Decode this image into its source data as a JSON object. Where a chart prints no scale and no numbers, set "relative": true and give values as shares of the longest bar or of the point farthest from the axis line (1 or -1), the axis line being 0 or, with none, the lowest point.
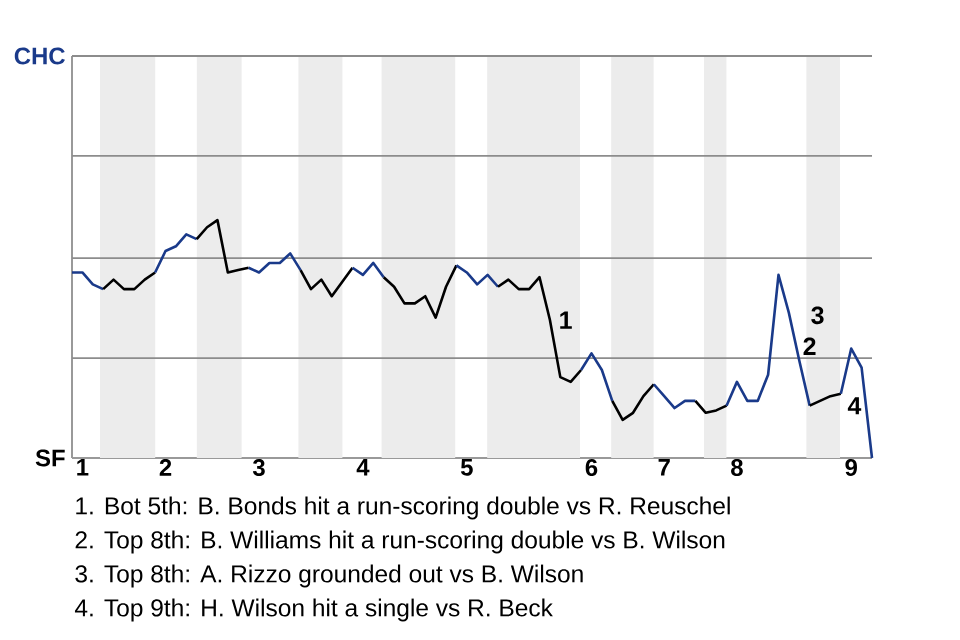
{
  "chart_data": {
    "type": "line",
    "relative": true,
    "categories": [
      null,
      "1",
      null,
      null,
      null,
      null,
      null,
      null,
      null,
      "2",
      null,
      null,
      null,
      null,
      null,
      null,
      null,
      null,
      "3",
      null,
      null,
      null,
      null,
      null,
      null,
      null,
      null,
      null,
      "4",
      null,
      null,
      null,
      null,
      null,
      null,
      null,
      null,
      null,
      "5",
      null,
      null,
      null,
      null,
      null,
      null,
      null,
      null,
      null,
      null,
      null,
      "6",
      null,
      null,
      null,
      null,
      null,
      null,
      "7",
      null,
      null,
      null,
      null,
      null,
      null,
      "8",
      null,
      null,
      null,
      null,
      null,
      null,
      null,
      null,
      null,
      null,
      "9",
      null,
      null
    ],
    "marker": "none",
    "line_style": "solid",
    "series": [
      {
        "color": "#1a3a8a",
        "values": [
          0.78,
          0.78,
          0.73,
          0.71,
          null,
          null,
          null,
          null,
          null,
          null,
          null,
          null,
          null,
          null,
          null,
          null,
          null,
          null,
          null,
          null,
          null,
          null,
          null,
          null,
          null,
          null,
          null,
          null,
          null,
          null,
          null,
          null,
          null,
          null,
          null,
          null,
          null,
          null,
          null,
          null,
          null,
          null,
          null,
          null,
          null,
          null,
          null,
          null,
          null,
          null,
          null,
          null,
          null,
          null,
          null,
          null,
          null,
          null,
          null,
          null,
          null,
          null,
          null,
          null,
          null,
          null,
          null,
          null,
          null,
          null,
          null,
          null,
          null,
          null,
          null,
          null,
          null,
          null
        ]
      },
      {
        "color": "#000000",
        "values": [
          null,
          null,
          null,
          0.71,
          0.75,
          0.71,
          0.71,
          0.75,
          0.78,
          null,
          null,
          null,
          null,
          null,
          null,
          null,
          null,
          null,
          null,
          null,
          null,
          null,
          null,
          null,
          null,
          null,
          null,
          null,
          null,
          null,
          null,
          null,
          null,
          null,
          null,
          null,
          null,
          null,
          null,
          null,
          null,
          null,
          null,
          null,
          null,
          null,
          null,
          null,
          null,
          null,
          null,
          null,
          null,
          null,
          null,
          null,
          null,
          null,
          null,
          null,
          null,
          null,
          null,
          null,
          null,
          null,
          null,
          null,
          null,
          null,
          null,
          null,
          null,
          null,
          null,
          null,
          null,
          null
        ]
      },
      {
        "color": "#1a3a8a",
        "values": [
          null,
          null,
          null,
          null,
          null,
          null,
          null,
          null,
          0.78,
          0.87,
          0.89,
          0.94,
          0.92,
          null,
          null,
          null,
          null,
          null,
          null,
          null,
          null,
          null,
          null,
          null,
          null,
          null,
          null,
          null,
          null,
          null,
          null,
          null,
          null,
          null,
          null,
          null,
          null,
          null,
          null,
          null,
          null,
          null,
          null,
          null,
          null,
          null,
          null,
          null,
          null,
          null,
          null,
          null,
          null,
          null,
          null,
          null,
          null,
          null,
          null,
          null,
          null,
          null,
          null,
          null,
          null,
          null,
          null,
          null,
          null,
          null,
          null,
          null,
          null,
          null,
          null,
          null,
          null,
          null
        ]
      },
      {
        "color": "#000000",
        "values": [
          null,
          null,
          null,
          null,
          null,
          null,
          null,
          null,
          null,
          null,
          null,
          null,
          0.92,
          0.97,
          1,
          0.78,
          0.79,
          0.8,
          null,
          null,
          null,
          null,
          null,
          null,
          null,
          null,
          null,
          null,
          null,
          null,
          null,
          null,
          null,
          null,
          null,
          null,
          null,
          null,
          null,
          null,
          null,
          null,
          null,
          null,
          null,
          null,
          null,
          null,
          null,
          null,
          null,
          null,
          null,
          null,
          null,
          null,
          null,
          null,
          null,
          null,
          null,
          null,
          null,
          null,
          null,
          null,
          null,
          null,
          null,
          null,
          null,
          null,
          null,
          null,
          null,
          null,
          null,
          null
        ]
      },
      {
        "color": "#1a3a8a",
        "values": [
          null,
          null,
          null,
          null,
          null,
          null,
          null,
          null,
          null,
          null,
          null,
          null,
          null,
          null,
          null,
          null,
          null,
          0.8,
          0.78,
          0.82,
          0.82,
          0.86,
          0.79,
          null,
          null,
          null,
          null,
          null,
          null,
          null,
          null,
          null,
          null,
          null,
          null,
          null,
          null,
          null,
          null,
          null,
          null,
          null,
          null,
          null,
          null,
          null,
          null,
          null,
          null,
          null,
          null,
          null,
          null,
          null,
          null,
          null,
          null,
          null,
          null,
          null,
          null,
          null,
          null,
          null,
          null,
          null,
          null,
          null,
          null,
          null,
          null,
          null,
          null,
          null,
          null,
          null,
          null,
          null
        ]
      },
      {
        "color": "#000000",
        "values": [
          null,
          null,
          null,
          null,
          null,
          null,
          null,
          null,
          null,
          null,
          null,
          null,
          null,
          null,
          null,
          null,
          null,
          null,
          null,
          null,
          null,
          null,
          0.79,
          0.71,
          0.75,
          0.68,
          0.74,
          0.8,
          null,
          null,
          null,
          null,
          null,
          null,
          null,
          null,
          null,
          null,
          null,
          null,
          null,
          null,
          null,
          null,
          null,
          null,
          null,
          null,
          null,
          null,
          null,
          null,
          null,
          null,
          null,
          null,
          null,
          null,
          null,
          null,
          null,
          null,
          null,
          null,
          null,
          null,
          null,
          null,
          null,
          null,
          null,
          null,
          null,
          null,
          null,
          null,
          null,
          null
        ]
      },
      {
        "color": "#1a3a8a",
        "values": [
          null,
          null,
          null,
          null,
          null,
          null,
          null,
          null,
          null,
          null,
          null,
          null,
          null,
          null,
          null,
          null,
          null,
          null,
          null,
          null,
          null,
          null,
          null,
          null,
          null,
          null,
          null,
          0.8,
          0.77,
          0.82,
          0.76,
          null,
          null,
          null,
          null,
          null,
          null,
          null,
          null,
          null,
          null,
          null,
          null,
          null,
          null,
          null,
          null,
          null,
          null,
          null,
          null,
          null,
          null,
          null,
          null,
          null,
          null,
          null,
          null,
          null,
          null,
          null,
          null,
          null,
          null,
          null,
          null,
          null,
          null,
          null,
          null,
          null,
          null,
          null,
          null,
          null,
          null,
          null
        ]
      },
      {
        "color": "#000000",
        "values": [
          null,
          null,
          null,
          null,
          null,
          null,
          null,
          null,
          null,
          null,
          null,
          null,
          null,
          null,
          null,
          null,
          null,
          null,
          null,
          null,
          null,
          null,
          null,
          null,
          null,
          null,
          null,
          null,
          null,
          null,
          0.76,
          0.72,
          0.65,
          0.65,
          0.68,
          0.59,
          0.72,
          0.81,
          null,
          null,
          null,
          null,
          null,
          null,
          null,
          null,
          null,
          null,
          null,
          null,
          null,
          null,
          null,
          null,
          null,
          null,
          null,
          null,
          null,
          null,
          null,
          null,
          null,
          null,
          null,
          null,
          null,
          null,
          null,
          null,
          null,
          null,
          null,
          null,
          null,
          null,
          null,
          null
        ]
      },
      {
        "color": "#1a3a8a",
        "values": [
          null,
          null,
          null,
          null,
          null,
          null,
          null,
          null,
          null,
          null,
          null,
          null,
          null,
          null,
          null,
          null,
          null,
          null,
          null,
          null,
          null,
          null,
          null,
          null,
          null,
          null,
          null,
          null,
          null,
          null,
          null,
          null,
          null,
          null,
          null,
          null,
          null,
          0.81,
          0.78,
          0.73,
          0.77,
          0.72,
          null,
          null,
          null,
          null,
          null,
          null,
          null,
          null,
          null,
          null,
          null,
          null,
          null,
          null,
          null,
          null,
          null,
          null,
          null,
          null,
          null,
          null,
          null,
          null,
          null,
          null,
          null,
          null,
          null,
          null,
          null,
          null,
          null,
          null,
          null,
          null
        ]
      },
      {
        "color": "#000000",
        "values": [
          null,
          null,
          null,
          null,
          null,
          null,
          null,
          null,
          null,
          null,
          null,
          null,
          null,
          null,
          null,
          null,
          null,
          null,
          null,
          null,
          null,
          null,
          null,
          null,
          null,
          null,
          null,
          null,
          null,
          null,
          null,
          null,
          null,
          null,
          null,
          null,
          null,
          null,
          null,
          null,
          null,
          0.72,
          0.75,
          0.71,
          0.71,
          0.76,
          0.58,
          0.34,
          0.32,
          0.37,
          null,
          null,
          null,
          null,
          null,
          null,
          null,
          null,
          null,
          null,
          null,
          null,
          null,
          null,
          null,
          null,
          null,
          null,
          null,
          null,
          null,
          null,
          null,
          null,
          null,
          null,
          null,
          null
        ]
      },
      {
        "color": "#1a3a8a",
        "values": [
          null,
          null,
          null,
          null,
          null,
          null,
          null,
          null,
          null,
          null,
          null,
          null,
          null,
          null,
          null,
          null,
          null,
          null,
          null,
          null,
          null,
          null,
          null,
          null,
          null,
          null,
          null,
          null,
          null,
          null,
          null,
          null,
          null,
          null,
          null,
          null,
          null,
          null,
          null,
          null,
          null,
          null,
          null,
          null,
          null,
          null,
          null,
          null,
          null,
          0.37,
          0.44,
          0.37,
          0.24,
          null,
          null,
          null,
          null,
          null,
          null,
          null,
          null,
          null,
          null,
          null,
          null,
          null,
          null,
          null,
          null,
          null,
          null,
          null,
          null,
          null,
          null,
          null,
          null,
          null
        ]
      },
      {
        "color": "#000000",
        "values": [
          null,
          null,
          null,
          null,
          null,
          null,
          null,
          null,
          null,
          null,
          null,
          null,
          null,
          null,
          null,
          null,
          null,
          null,
          null,
          null,
          null,
          null,
          null,
          null,
          null,
          null,
          null,
          null,
          null,
          null,
          null,
          null,
          null,
          null,
          null,
          null,
          null,
          null,
          null,
          null,
          null,
          null,
          null,
          null,
          null,
          null,
          null,
          null,
          null,
          null,
          null,
          null,
          0.24,
          0.16,
          0.19,
          0.26,
          0.31,
          null,
          null,
          null,
          null,
          null,
          null,
          null,
          null,
          null,
          null,
          null,
          null,
          null,
          null,
          null,
          null,
          null,
          null,
          null,
          null,
          null
        ]
      },
      {
        "color": "#1a3a8a",
        "values": [
          null,
          null,
          null,
          null,
          null,
          null,
          null,
          null,
          null,
          null,
          null,
          null,
          null,
          null,
          null,
          null,
          null,
          null,
          null,
          null,
          null,
          null,
          null,
          null,
          null,
          null,
          null,
          null,
          null,
          null,
          null,
          null,
          null,
          null,
          null,
          null,
          null,
          null,
          null,
          null,
          null,
          null,
          null,
          null,
          null,
          null,
          null,
          null,
          null,
          null,
          null,
          null,
          null,
          null,
          null,
          null,
          0.31,
          0.26,
          0.21,
          0.24,
          0.24,
          null,
          null,
          null,
          null,
          null,
          null,
          null,
          null,
          null,
          null,
          null,
          null,
          null,
          null,
          null,
          null,
          null
        ]
      },
      {
        "color": "#000000",
        "values": [
          null,
          null,
          null,
          null,
          null,
          null,
          null,
          null,
          null,
          null,
          null,
          null,
          null,
          null,
          null,
          null,
          null,
          null,
          null,
          null,
          null,
          null,
          null,
          null,
          null,
          null,
          null,
          null,
          null,
          null,
          null,
          null,
          null,
          null,
          null,
          null,
          null,
          null,
          null,
          null,
          null,
          null,
          null,
          null,
          null,
          null,
          null,
          null,
          null,
          null,
          null,
          null,
          null,
          null,
          null,
          null,
          null,
          null,
          null,
          null,
          0.24,
          0.19,
          0.2,
          0.22,
          null,
          null,
          null,
          null,
          null,
          null,
          null,
          null,
          null,
          null,
          null,
          null,
          null,
          null
        ]
      },
      {
        "color": "#1a3a8a",
        "values": [
          null,
          null,
          null,
          null,
          null,
          null,
          null,
          null,
          null,
          null,
          null,
          null,
          null,
          null,
          null,
          null,
          null,
          null,
          null,
          null,
          null,
          null,
          null,
          null,
          null,
          null,
          null,
          null,
          null,
          null,
          null,
          null,
          null,
          null,
          null,
          null,
          null,
          null,
          null,
          null,
          null,
          null,
          null,
          null,
          null,
          null,
          null,
          null,
          null,
          null,
          null,
          null,
          null,
          null,
          null,
          null,
          null,
          null,
          null,
          null,
          null,
          null,
          null,
          0.22,
          0.32,
          0.24,
          0.24,
          0.35,
          0.77,
          0.61,
          0.41,
          0.22,
          null,
          null,
          null,
          null,
          null,
          null
        ]
      },
      {
        "color": "#000000",
        "values": [
          null,
          null,
          null,
          null,
          null,
          null,
          null,
          null,
          null,
          null,
          null,
          null,
          null,
          null,
          null,
          null,
          null,
          null,
          null,
          null,
          null,
          null,
          null,
          null,
          null,
          null,
          null,
          null,
          null,
          null,
          null,
          null,
          null,
          null,
          null,
          null,
          null,
          null,
          null,
          null,
          null,
          null,
          null,
          null,
          null,
          null,
          null,
          null,
          null,
          null,
          null,
          null,
          null,
          null,
          null,
          null,
          null,
          null,
          null,
          null,
          null,
          null,
          null,
          null,
          null,
          null,
          null,
          null,
          null,
          null,
          null,
          0.22,
          0.24,
          0.26,
          0.27,
          null,
          null,
          null
        ]
      },
      {
        "color": "#1a3a8a",
        "values": [
          null,
          null,
          null,
          null,
          null,
          null,
          null,
          null,
          null,
          null,
          null,
          null,
          null,
          null,
          null,
          null,
          null,
          null,
          null,
          null,
          null,
          null,
          null,
          null,
          null,
          null,
          null,
          null,
          null,
          null,
          null,
          null,
          null,
          null,
          null,
          null,
          null,
          null,
          null,
          null,
          null,
          null,
          null,
          null,
          null,
          null,
          null,
          null,
          null,
          null,
          null,
          null,
          null,
          null,
          null,
          null,
          null,
          null,
          null,
          null,
          null,
          null,
          null,
          null,
          null,
          null,
          null,
          null,
          null,
          null,
          null,
          null,
          null,
          null,
          0.27,
          0.46,
          0.38,
          0
        ]
      }
    ],
    "ref_lines": [
      {
        "axis": "y",
        "value": 0.42,
        "color": "#8c8c8c"
      },
      {
        "axis": "y",
        "value": 0.84,
        "color": "#8c8c8c"
      },
      {
        "axis": "y",
        "value": 1.27,
        "color": "#8c8c8c"
      },
      {
        "axis": "y",
        "value": 1.69,
        "color": "#8c8c8c"
      }
    ],
    "annotations": [
      "CHC",
      "SF",
      "1",
      "2",
      "3",
      "4",
      "1. Bot 5th: B. Bonds hit a run-scoring double vs R. Reuschel",
      "2. Top 8th: B. Williams hit a run-scoring double vs B. Wilson",
      "3. Top 8th: A. Rizzo grounded out vs B. Wilson",
      "4. Top 9th: H. Wilson hit a single vs R. Beck"
    ]
  }
}
